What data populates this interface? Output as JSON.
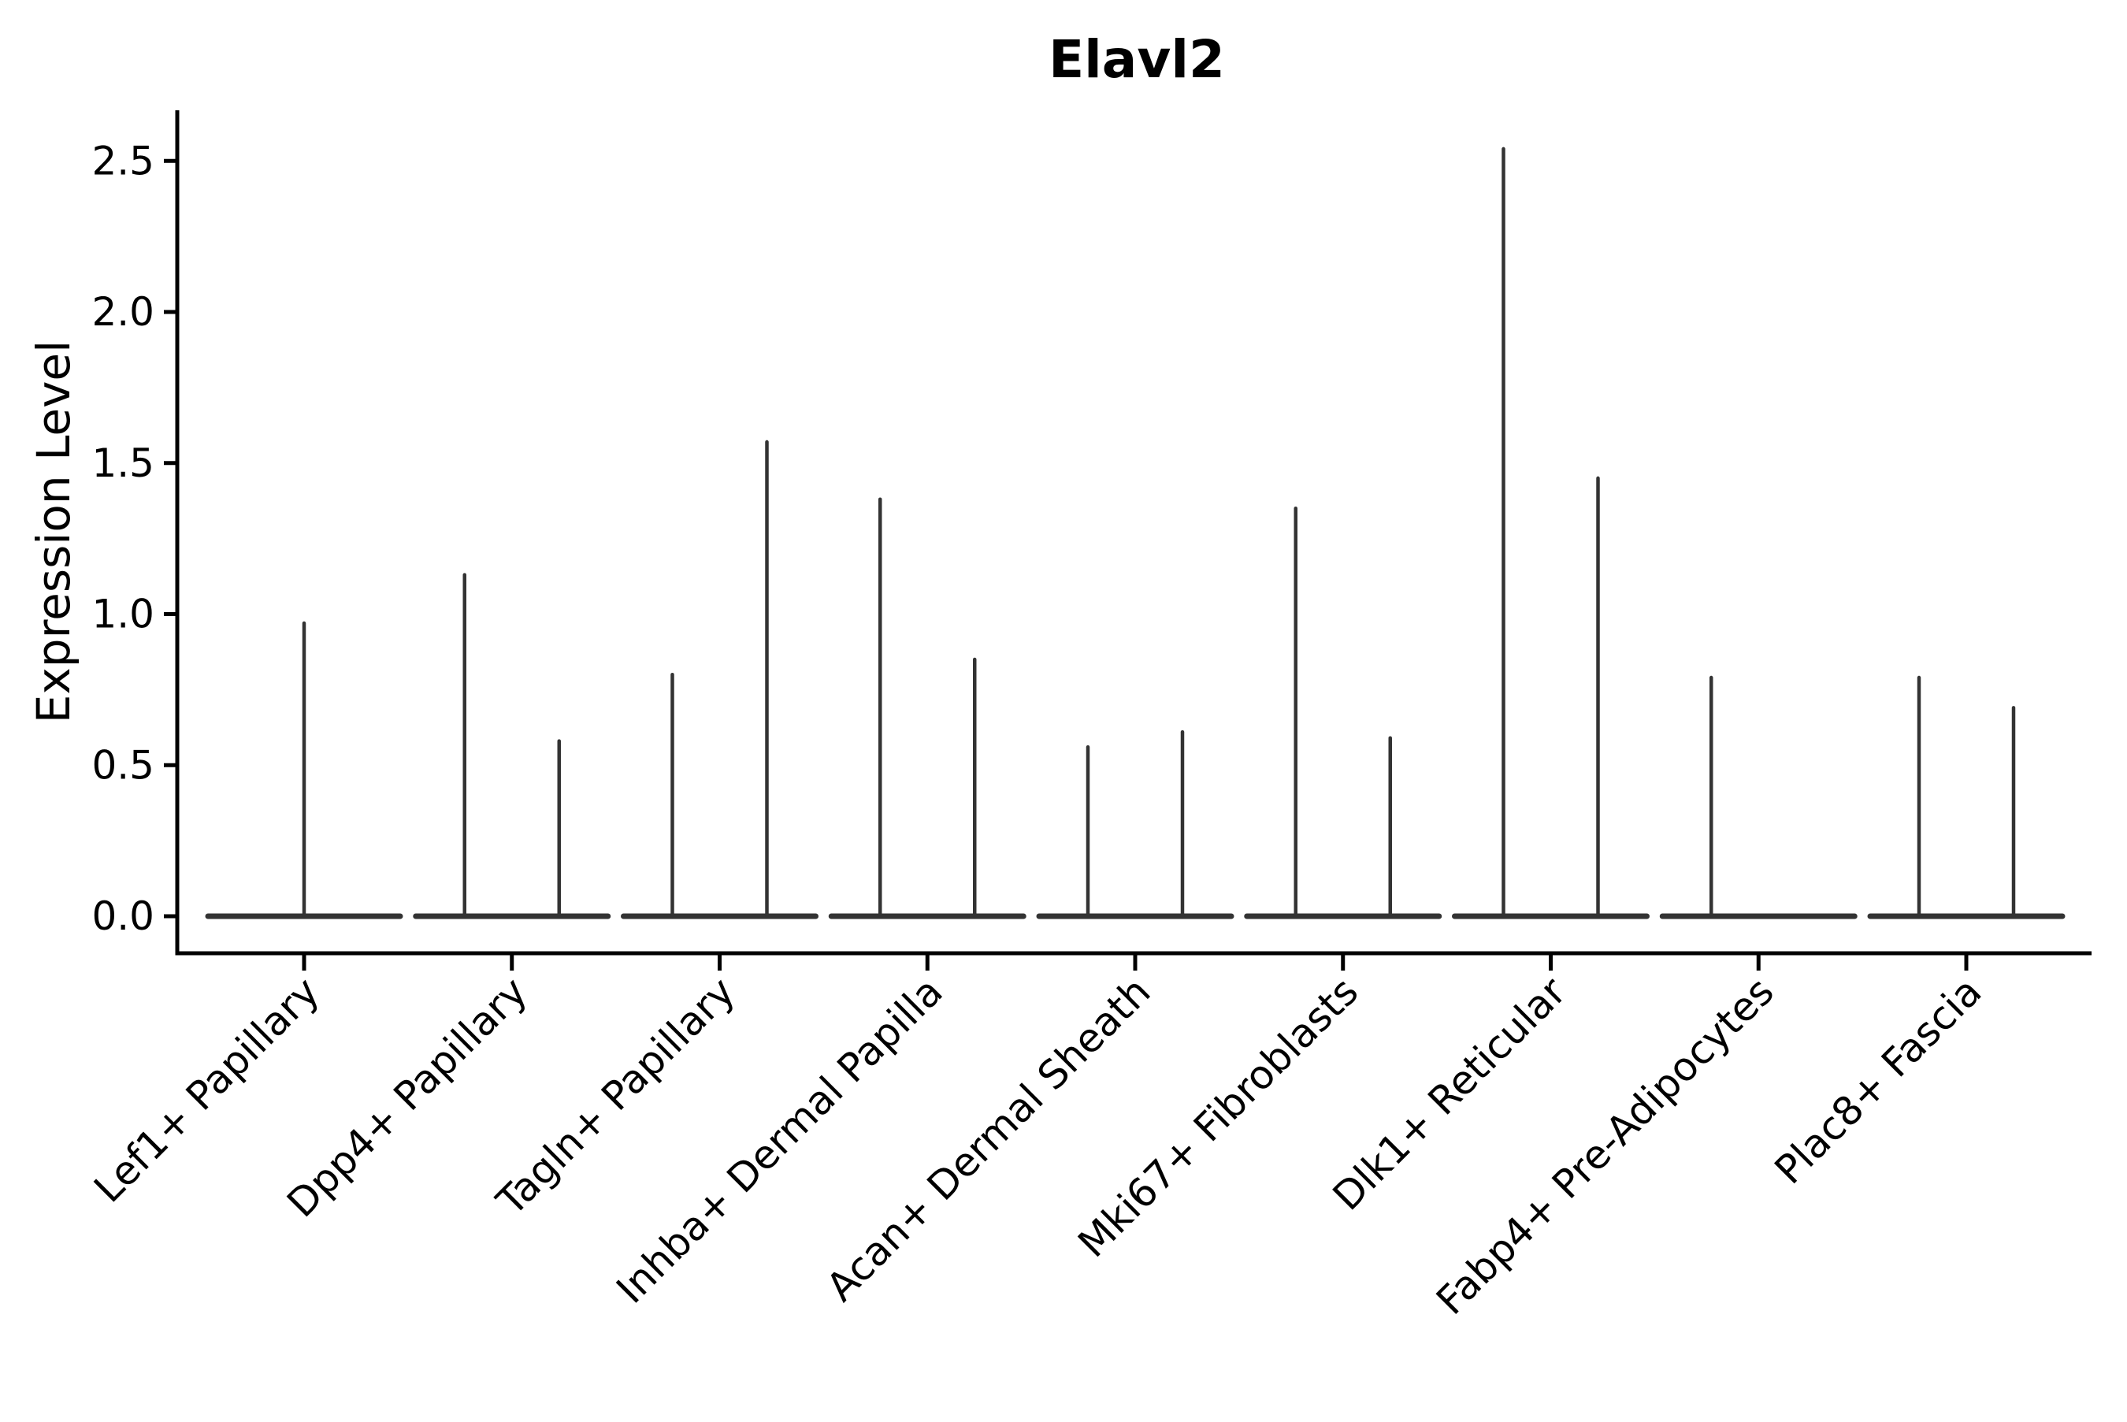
{
  "title": "Elavl2",
  "ylabel": "Expression Level",
  "chart_data": {
    "type": "violin",
    "title": "Elavl2",
    "xlabel": "",
    "ylabel": "Expression Level",
    "ylim": [
      -0.12,
      2.67
    ],
    "yticks": [
      0.0,
      0.5,
      1.0,
      1.5,
      2.0,
      2.5
    ],
    "grid": false,
    "legend": "none",
    "style_note": "collapsed violins: wide flat base at expression 0 with thin vertical spikes reaching each violin's maximum expression value; up to two violins per category",
    "groups": [
      {
        "category": "Lef1+ Papillary",
        "violins": [
          {
            "slot": "center",
            "max": 0.97
          }
        ]
      },
      {
        "category": "Dpp4+ Papillary",
        "violins": [
          {
            "slot": "left",
            "max": 1.13
          },
          {
            "slot": "right",
            "max": 0.58
          }
        ]
      },
      {
        "category": "Tagln+ Papillary",
        "violins": [
          {
            "slot": "left",
            "max": 0.8
          },
          {
            "slot": "right",
            "max": 1.57
          }
        ]
      },
      {
        "category": "Inhba+ Dermal Papilla",
        "violins": [
          {
            "slot": "left",
            "max": 1.38
          },
          {
            "slot": "right",
            "max": 0.85
          }
        ]
      },
      {
        "category": "Acan+ Dermal Sheath",
        "violins": [
          {
            "slot": "left",
            "max": 0.56
          },
          {
            "slot": "right",
            "max": 0.61
          }
        ]
      },
      {
        "category": "Mki67+ Fibroblasts",
        "violins": [
          {
            "slot": "left",
            "max": 1.35
          },
          {
            "slot": "right",
            "max": 0.59
          }
        ]
      },
      {
        "category": "Dlk1+ Reticular",
        "violins": [
          {
            "slot": "left",
            "max": 2.54
          },
          {
            "slot": "right",
            "max": 1.45
          }
        ]
      },
      {
        "category": "Fabp4+ Pre-Adipocytes",
        "violins": [
          {
            "slot": "left",
            "max": 0.79
          }
        ]
      },
      {
        "category": "Plac8+ Fascia",
        "violins": [
          {
            "slot": "left",
            "max": 0.79
          },
          {
            "slot": "right",
            "max": 0.69
          }
        ]
      }
    ]
  },
  "colors": {
    "violin": "#333333",
    "axis": "#000000",
    "text": "#000000",
    "background": "#ffffff"
  }
}
